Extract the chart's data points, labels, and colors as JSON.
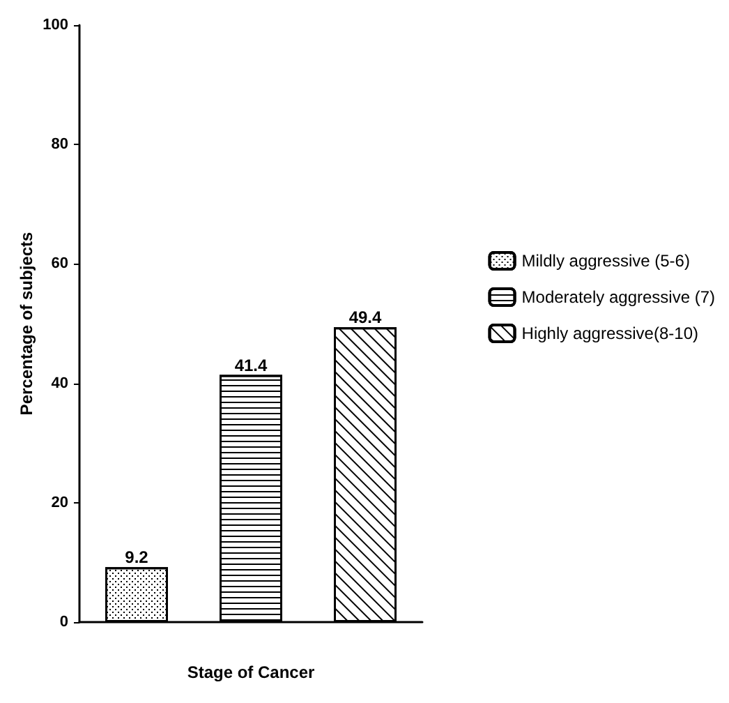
{
  "chart_data": {
    "type": "bar",
    "xlabel": "Stage of Cancer",
    "ylabel": "Percentage of subjects",
    "categories": [
      null,
      null,
      null
    ],
    "series": [
      {
        "name": "Mildly aggressive (5-6)",
        "color": "#000000",
        "values": [
          9.2,
          null,
          null
        ]
      },
      {
        "name": "Moderately aggressive (7)",
        "color": "#000000",
        "values": [
          null,
          41.4,
          null
        ]
      },
      {
        "name": "Highly aggressive(8-10)",
        "color": "#000000",
        "values": [
          null,
          null,
          49.4
        ]
      }
    ],
    "ylim": [
      0,
      100
    ],
    "yticks": [
      0,
      20,
      40,
      60,
      80,
      100
    ],
    "data_labels": true,
    "legend": "right",
    "grid": false
  }
}
